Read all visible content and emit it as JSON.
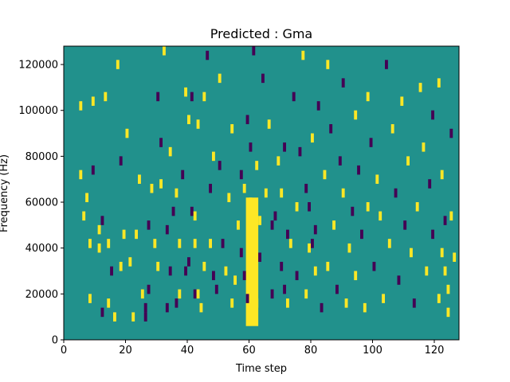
{
  "chart_data": {
    "type": "heatmap",
    "title": "Predicted : Gma",
    "xlabel": "Time step",
    "ylabel": "Frequency (Hz)",
    "xlim": [
      0,
      128
    ],
    "ylim": [
      0,
      128000
    ],
    "x_ticks": [
      0,
      20,
      40,
      60,
      80,
      100,
      120
    ],
    "y_ticks": [
      0,
      20000,
      40000,
      60000,
      80000,
      100000,
      120000
    ],
    "y_tick_labels": [
      "0",
      "20000",
      "40000",
      "60000",
      "80000",
      "100000",
      "120000"
    ],
    "grid": false,
    "legend": "none",
    "colormap": "viridis",
    "colors": {
      "background": "#21918c",
      "high": "#fde725",
      "low": "#440154"
    },
    "cell_height_hz": 2000,
    "cells": [
      [
        5,
        100000,
        "high"
      ],
      [
        5,
        70000,
        "high"
      ],
      [
        6,
        52000,
        "high"
      ],
      [
        7,
        60000,
        "high"
      ],
      [
        8,
        16000,
        "high"
      ],
      [
        8,
        40000,
        "high"
      ],
      [
        9,
        72000,
        "low"
      ],
      [
        9,
        102000,
        "high"
      ],
      [
        11,
        38000,
        "high"
      ],
      [
        11,
        46000,
        "high"
      ],
      [
        12,
        10000,
        "low"
      ],
      [
        12,
        50000,
        "low"
      ],
      [
        13,
        104000,
        "high"
      ],
      [
        14,
        40000,
        "high"
      ],
      [
        14,
        14000,
        "high"
      ],
      [
        15,
        28000,
        "low"
      ],
      [
        16,
        8000,
        "high"
      ],
      [
        17,
        118000,
        "high"
      ],
      [
        18,
        30000,
        "high"
      ],
      [
        18,
        76000,
        "low"
      ],
      [
        19,
        44000,
        "high"
      ],
      [
        20,
        88000,
        "high"
      ],
      [
        21,
        32000,
        "high"
      ],
      [
        22,
        8000,
        "high"
      ],
      [
        23,
        44000,
        "high"
      ],
      [
        24,
        68000,
        "high"
      ],
      [
        25,
        18000,
        "high"
      ],
      [
        26,
        8000,
        "low"
      ],
      [
        26,
        12000,
        "low"
      ],
      [
        27,
        20000,
        "low"
      ],
      [
        27,
        48000,
        "low"
      ],
      [
        28,
        64000,
        "high"
      ],
      [
        29,
        40000,
        "high"
      ],
      [
        30,
        30000,
        "high"
      ],
      [
        30,
        104000,
        "low"
      ],
      [
        31,
        66000,
        "high"
      ],
      [
        31,
        84000,
        "low"
      ],
      [
        32,
        124000,
        "high"
      ],
      [
        33,
        12000,
        "low"
      ],
      [
        33,
        46000,
        "low"
      ],
      [
        34,
        28000,
        "low"
      ],
      [
        34,
        80000,
        "high"
      ],
      [
        35,
        54000,
        "low"
      ],
      [
        36,
        62000,
        "high"
      ],
      [
        36,
        14000,
        "low"
      ],
      [
        37,
        40000,
        "high"
      ],
      [
        37,
        18000,
        "high"
      ],
      [
        38,
        70000,
        "low"
      ],
      [
        39,
        28000,
        "low"
      ],
      [
        39,
        106000,
        "high"
      ],
      [
        40,
        32000,
        "low"
      ],
      [
        40,
        94000,
        "high"
      ],
      [
        41,
        54000,
        "low"
      ],
      [
        41,
        104000,
        "low"
      ],
      [
        42,
        40000,
        "high"
      ],
      [
        42,
        18000,
        "low"
      ],
      [
        42,
        52000,
        "high"
      ],
      [
        43,
        92000,
        "high"
      ],
      [
        43,
        18000,
        "high"
      ],
      [
        44,
        12000,
        "high"
      ],
      [
        45,
        104000,
        "high"
      ],
      [
        45,
        30000,
        "high"
      ],
      [
        46,
        122000,
        "low"
      ],
      [
        47,
        40000,
        "high"
      ],
      [
        47,
        64000,
        "low"
      ],
      [
        48,
        26000,
        "low"
      ],
      [
        48,
        78000,
        "high"
      ],
      [
        49,
        20000,
        "low"
      ],
      [
        50,
        74000,
        "low"
      ],
      [
        50,
        112000,
        "high"
      ],
      [
        51,
        40000,
        "low"
      ],
      [
        52,
        28000,
        "high"
      ],
      [
        53,
        60000,
        "high"
      ],
      [
        54,
        14000,
        "high"
      ],
      [
        54,
        90000,
        "high"
      ],
      [
        55,
        24000,
        "high"
      ],
      [
        56,
        48000,
        "high"
      ],
      [
        57,
        36000,
        "low"
      ],
      [
        57,
        70000,
        "low"
      ],
      [
        58,
        26000,
        "low"
      ],
      [
        58,
        64000,
        "high"
      ],
      [
        59,
        16000,
        "low"
      ],
      [
        59,
        94000,
        "low"
      ],
      [
        60,
        82000,
        "low"
      ],
      [
        61,
        124000,
        "low"
      ],
      [
        62,
        74000,
        "high"
      ],
      [
        63,
        34000,
        "low"
      ],
      [
        64,
        112000,
        "low"
      ],
      [
        65,
        62000,
        "high"
      ],
      [
        66,
        92000,
        "high"
      ],
      [
        67,
        48000,
        "low"
      ],
      [
        67,
        18000,
        "low"
      ],
      [
        68,
        52000,
        "low"
      ],
      [
        69,
        76000,
        "high"
      ],
      [
        70,
        62000,
        "high"
      ],
      [
        71,
        82000,
        "low"
      ],
      [
        72,
        14000,
        "high"
      ],
      [
        73,
        40000,
        "high"
      ],
      [
        74,
        104000,
        "low"
      ],
      [
        75,
        56000,
        "high"
      ],
      [
        75,
        26000,
        "low"
      ],
      [
        76,
        80000,
        "low"
      ],
      [
        77,
        122000,
        "high"
      ],
      [
        78,
        18000,
        "high"
      ],
      [
        78,
        64000,
        "low"
      ],
      [
        79,
        38000,
        "high"
      ],
      [
        80,
        86000,
        "high"
      ],
      [
        81,
        46000,
        "low"
      ],
      [
        81,
        28000,
        "high"
      ],
      [
        82,
        100000,
        "low"
      ],
      [
        83,
        12000,
        "low"
      ],
      [
        84,
        70000,
        "high"
      ],
      [
        85,
        30000,
        "high"
      ],
      [
        85,
        118000,
        "high"
      ],
      [
        86,
        90000,
        "low"
      ],
      [
        87,
        48000,
        "high"
      ],
      [
        88,
        20000,
        "low"
      ],
      [
        89,
        76000,
        "low"
      ],
      [
        90,
        62000,
        "high"
      ],
      [
        90,
        110000,
        "low"
      ],
      [
        91,
        14000,
        "high"
      ],
      [
        92,
        38000,
        "high"
      ],
      [
        93,
        54000,
        "low"
      ],
      [
        94,
        96000,
        "high"
      ],
      [
        94,
        26000,
        "high"
      ],
      [
        95,
        72000,
        "low"
      ],
      [
        96,
        44000,
        "low"
      ],
      [
        97,
        12000,
        "high"
      ],
      [
        98,
        56000,
        "high"
      ],
      [
        98,
        104000,
        "high"
      ],
      [
        99,
        84000,
        "low"
      ],
      [
        100,
        30000,
        "low"
      ],
      [
        101,
        68000,
        "high"
      ],
      [
        102,
        52000,
        "high"
      ],
      [
        103,
        16000,
        "high"
      ],
      [
        104,
        118000,
        "low"
      ],
      [
        105,
        40000,
        "high"
      ],
      [
        106,
        90000,
        "high"
      ],
      [
        107,
        62000,
        "low"
      ],
      [
        108,
        24000,
        "low"
      ],
      [
        109,
        102000,
        "high"
      ],
      [
        110,
        48000,
        "low"
      ],
      [
        111,
        76000,
        "high"
      ],
      [
        112,
        36000,
        "high"
      ],
      [
        113,
        14000,
        "low"
      ],
      [
        114,
        56000,
        "high"
      ],
      [
        115,
        108000,
        "high"
      ],
      [
        116,
        82000,
        "high"
      ],
      [
        117,
        28000,
        "high"
      ],
      [
        118,
        66000,
        "low"
      ],
      [
        119,
        44000,
        "low"
      ],
      [
        119,
        96000,
        "low"
      ],
      [
        121,
        110000,
        "high"
      ],
      [
        122,
        70000,
        "high"
      ],
      [
        123,
        50000,
        "low"
      ],
      [
        124,
        20000,
        "high"
      ],
      [
        125,
        88000,
        "low"
      ],
      [
        126,
        34000,
        "high"
      ],
      [
        60,
        58000,
        "high"
      ],
      [
        61,
        36000,
        "high"
      ],
      [
        62,
        14000,
        "high"
      ],
      [
        63,
        50000,
        "high"
      ],
      [
        70,
        30000,
        "low"
      ],
      [
        71,
        20000,
        "low"
      ],
      [
        72,
        44000,
        "low"
      ],
      [
        79,
        56000,
        "low"
      ],
      [
        80,
        40000,
        "low"
      ],
      [
        121,
        16000,
        "high"
      ],
      [
        122,
        36000,
        "high"
      ],
      [
        123,
        28000,
        "high"
      ],
      [
        124,
        10000,
        "high"
      ],
      [
        125,
        52000,
        "high"
      ]
    ],
    "block_high_region": {
      "x_range": [
        59,
        63
      ],
      "y_range": [
        6000,
        62000
      ]
    }
  }
}
